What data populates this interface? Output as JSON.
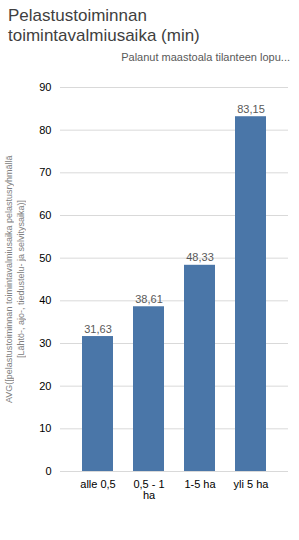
{
  "chart_data": {
    "type": "bar",
    "title": "Pelastustoiminnan\ntoimintavalmiusaika (min)",
    "subtitle": "Palanut maastoala tilanteen lopu...",
    "ylabel": "AVG([pelastustoiminnan toimintavalmiusaika pelastusryhmällä\n[Lähtö-, ajo-, tiedustelu- ja selvitysaika)]",
    "categories": [
      "alle 0,5",
      "0,5 - 1\nha",
      "1-5 ha",
      "yli 5 ha"
    ],
    "values": [
      31.63,
      38.61,
      48.33,
      83.15
    ],
    "value_labels": [
      "31,63",
      "38,61",
      "48,33",
      "83,15"
    ],
    "data_labels": true,
    "color": "#4a76a8",
    "ylim": [
      0,
      90
    ],
    "yticks": [
      0,
      10,
      20,
      30,
      40,
      50,
      60,
      70,
      80,
      90
    ],
    "grid": true
  }
}
